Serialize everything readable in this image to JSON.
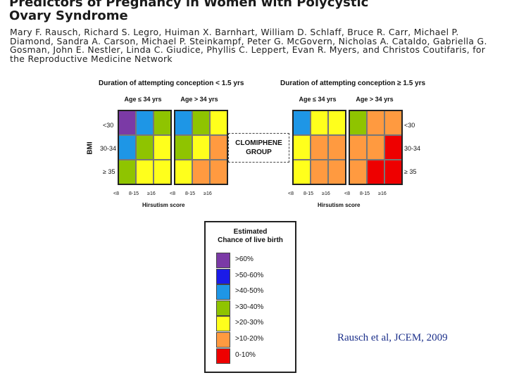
{
  "paper": {
    "title_line1": "Predictors of Pregnancy in Women with Polycystic",
    "title_line2": "Ovary Syndrome",
    "authors": "Mary F. Rausch, Richard S. Legro, Huiman X. Barnhart, William D. Schlaff, Bruce R. Carr, Michael P. Diamond, Sandra A. Carson, Michael P. Steinkampf, Peter G. McGovern, Nicholas A. Cataldo, Gabriella G. Gosman, John E. Nestler, Linda C. Giudice, Phyllis C. Leppert, Evan R. Myers, and Christos Coutifaris, for the Reproductive Medicine Network"
  },
  "figure": {
    "left_title": "Duration of attempting conception < 1.5 yrs",
    "right_title": "Duration of attempting conception ≥ 1.5 yrs",
    "age_young": "Age ≤ 34 yrs",
    "age_old": "Age > 34 yrs",
    "bmi_label": "BMI",
    "bmi_rows": [
      "<30",
      "30-34",
      "≥ 35"
    ],
    "hirsutism_cols": [
      "<8",
      "8-15",
      "≥16"
    ],
    "x_title": "Hirsutism score",
    "center_label_line1": "CLOMIPHENE",
    "center_label_line2": "GROUP"
  },
  "chart_data": {
    "type": "heatmap",
    "title": "Estimated Chance of live birth",
    "rows": [
      "<30",
      "30-34",
      "≥ 35"
    ],
    "cols": [
      "<8",
      "8-15",
      "≥16"
    ],
    "panels": [
      {
        "duration": "< 1.5 yrs",
        "age": "≤ 34 yrs",
        "cells": [
          [
            ">60%",
            ">40-50%",
            ">30-40%"
          ],
          [
            ">40-50%",
            ">30-40%",
            ">20-30%"
          ],
          [
            ">30-40%",
            ">20-30%",
            ">20-30%"
          ]
        ]
      },
      {
        "duration": "< 1.5 yrs",
        "age": "> 34 yrs",
        "cells": [
          [
            ">40-50%",
            ">30-40%",
            ">20-30%"
          ],
          [
            ">30-40%",
            ">20-30%",
            ">10-20%"
          ],
          [
            ">20-30%",
            ">10-20%",
            ">10-20%"
          ]
        ]
      },
      {
        "duration": "≥ 1.5 yrs",
        "age": "≤ 34 yrs",
        "cells": [
          [
            ">40-50%",
            ">20-30%",
            ">20-30%"
          ],
          [
            ">20-30%",
            ">10-20%",
            ">10-20%"
          ],
          [
            ">20-30%",
            ">10-20%",
            ">10-20%"
          ]
        ]
      },
      {
        "duration": "≥ 1.5 yrs",
        "age": "> 34 yrs",
        "cells": [
          [
            ">30-40%",
            ">10-20%",
            ">10-20%"
          ],
          [
            ">10-20%",
            ">10-20%",
            "0-10%"
          ],
          [
            ">10-20%",
            "0-10%",
            "0-10%"
          ]
        ]
      }
    ]
  },
  "legend": {
    "title_line1": "Estimated",
    "title_line2": "Chance of live birth",
    "items": [
      {
        "label": ">60%",
        "color": "#7b3aa6"
      },
      {
        "label": ">50-60%",
        "color": "#1b1be8"
      },
      {
        "label": ">40-50%",
        "color": "#1e96e6"
      },
      {
        "label": ">30-40%",
        "color": "#8fc400"
      },
      {
        "label": ">20-30%",
        "color": "#ffff1c"
      },
      {
        "label": ">10-20%",
        "color": "#ff9a40"
      },
      {
        "label": "0-10%",
        "color": "#ee0000"
      }
    ]
  },
  "citation": "Rausch et al, JCEM, 2009"
}
